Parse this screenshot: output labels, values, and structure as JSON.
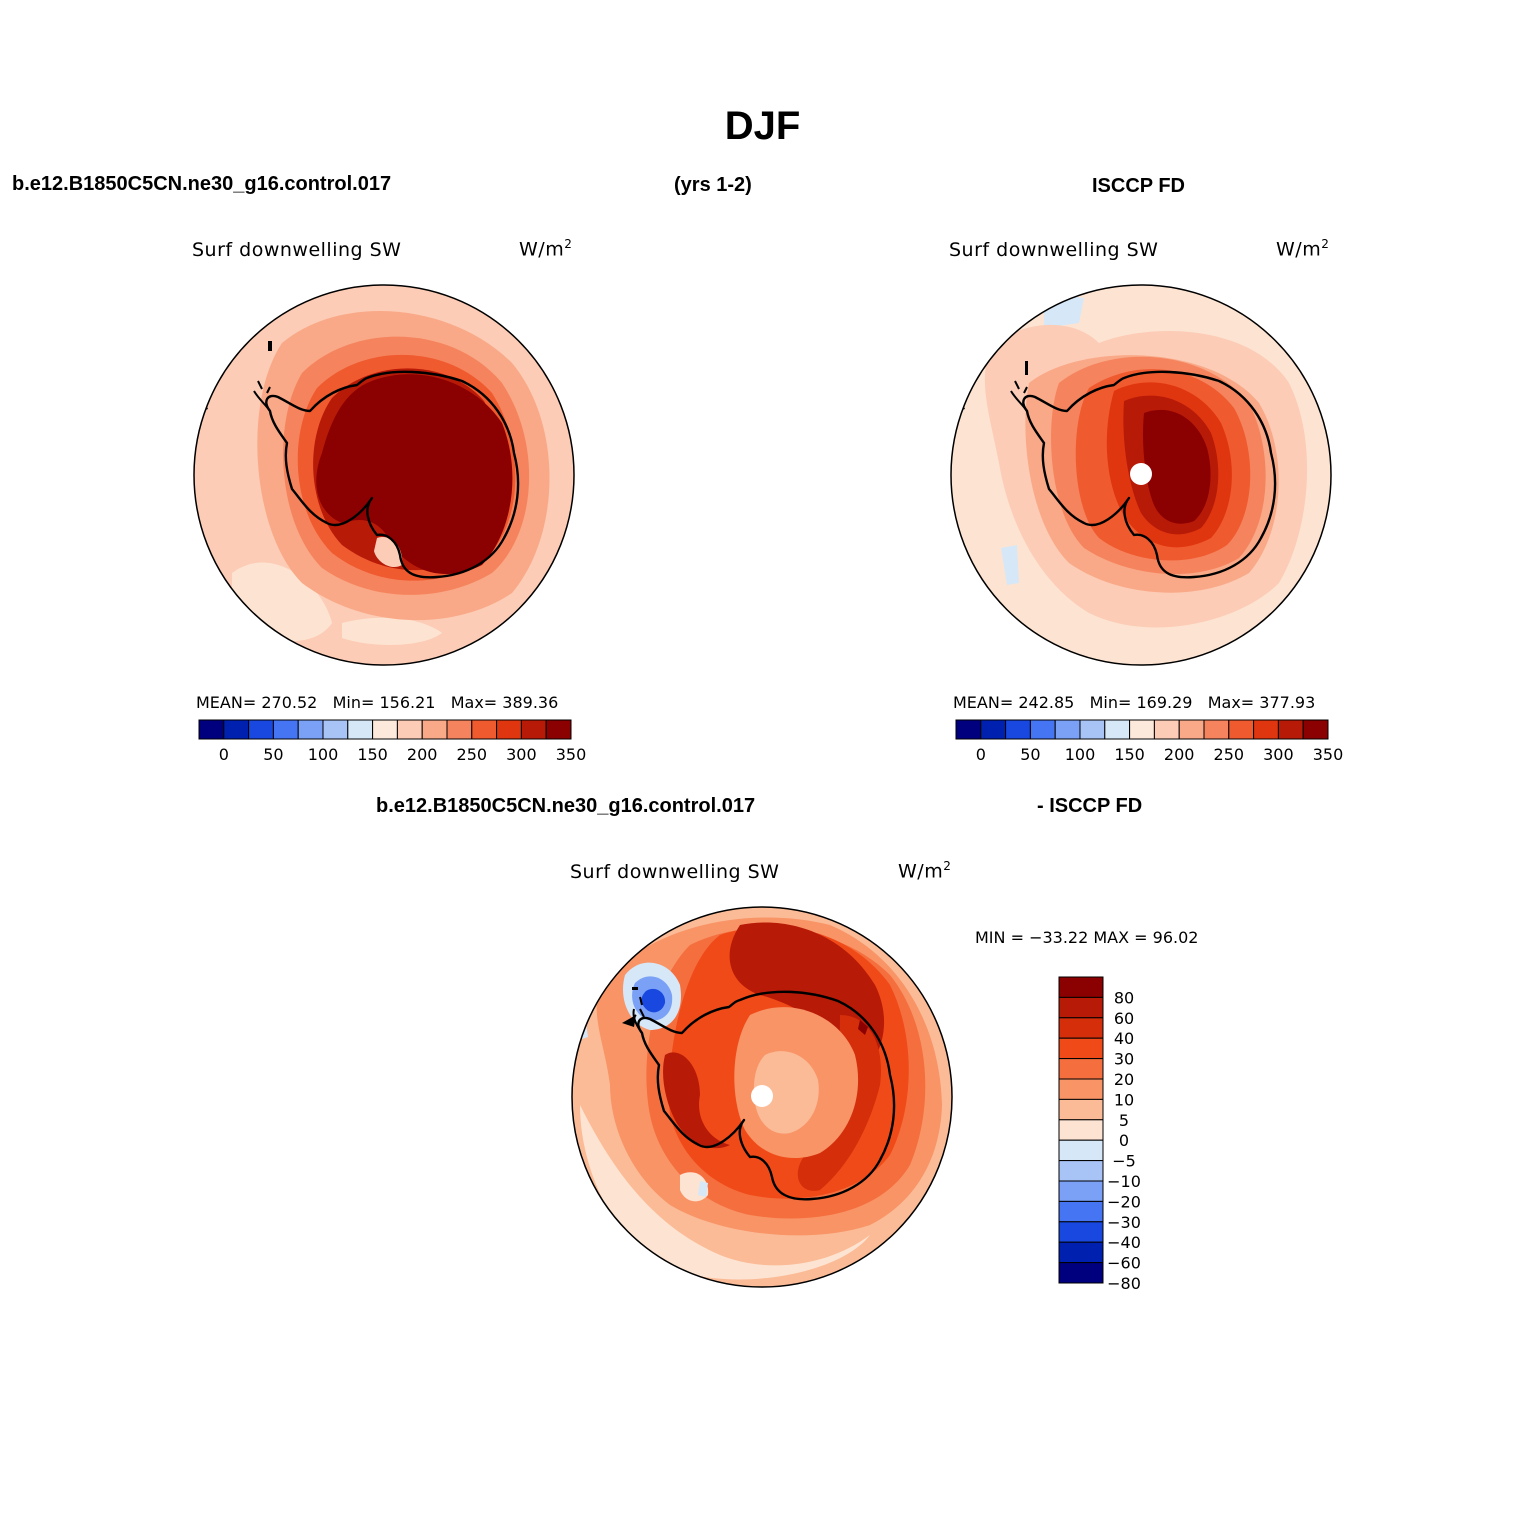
{
  "title": "DJF",
  "header": {
    "case_name": "b.e12.B1850C5CN.ne30_g16.control.017",
    "years": "(yrs 1-2)",
    "obs_name": "ISCCP FD"
  },
  "panels": [
    {
      "variable": "Surf downwelling SW",
      "units": "W/m",
      "units_exp": "2",
      "stats": {
        "mean_label": "MEAN=",
        "mean": "270.52",
        "min_label": "Min=",
        "min": "156.21",
        "max_label": "Max=",
        "max": "389.36"
      }
    },
    {
      "variable": "Surf downwelling SW",
      "units": "W/m",
      "units_exp": "2",
      "stats": {
        "mean_label": "MEAN=",
        "mean": "242.85",
        "min_label": "Min=",
        "min": "169.29",
        "max_label": "Max=",
        "max": "377.93"
      }
    }
  ],
  "diff_header": {
    "case_name": "b.e12.B1850C5CN.ne30_g16.control.017",
    "obs_name": "- ISCCP FD"
  },
  "diff_panel": {
    "variable": "Surf downwelling SW",
    "units": "W/m",
    "units_exp": "2",
    "minmax_text": "MIN = −33.22 MAX =  96.02"
  },
  "colorbar_abs": {
    "colors": [
      "#00007f",
      "#0021b0",
      "#1848e0",
      "#4575f2",
      "#7aa1f6",
      "#a8c4f7",
      "#d6e7f7",
      "#fde9dc",
      "#fcccb6",
      "#f9a987",
      "#f5845e",
      "#f05a2f",
      "#e0360f",
      "#b81a08",
      "#8b0000"
    ],
    "labels": [
      "0",
      "50",
      "100",
      "150",
      "200",
      "250",
      "300",
      "350"
    ]
  },
  "colorbar_diff": {
    "colors": [
      "#8b0000",
      "#b81a08",
      "#d42e0a",
      "#f04a18",
      "#f56e3e",
      "#f89466",
      "#fbbb97",
      "#fde4d2",
      "#d6e7f7",
      "#a8c4f7",
      "#7aa1f6",
      "#4575f2",
      "#1848e0",
      "#0021b0",
      "#00007f"
    ],
    "labels": [
      "80",
      "60",
      "40",
      "30",
      "20",
      "10",
      "5",
      "0",
      "−5",
      "−10",
      "−20",
      "−30",
      "−40",
      "−60",
      "−80"
    ]
  },
  "map_palette": {
    "background": "#fde4d2",
    "pale": "#fcccb6",
    "light": "#f9a987",
    "mid": "#f5845e",
    "orange": "#f05a2f",
    "dark": "#e0360f",
    "darker": "#b81a08",
    "darkest": "#8b0000",
    "blue_light": "#d6e7f7",
    "blue_mid": "#7aa1f6",
    "blue_dark": "#1848e0",
    "pole_hole": "#ffffff",
    "coast": "#000000"
  }
}
